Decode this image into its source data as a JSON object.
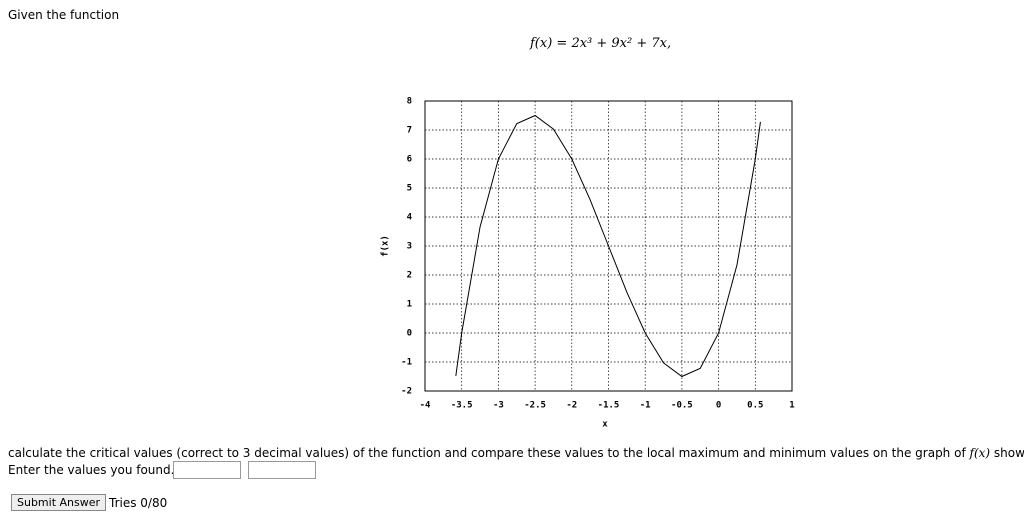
{
  "header": {
    "intro": "Given the function",
    "formula": "f(x) = 2x³ + 9x² + 7x,"
  },
  "chart_data": {
    "type": "line",
    "xlabel": "x",
    "ylabel": "f(x)",
    "x": [
      -3.58,
      -3.5,
      -3.25,
      -3,
      -2.75,
      -2.5,
      -2.25,
      -2,
      -1.75,
      -1.5,
      -1.25,
      -1,
      -0.75,
      -0.5,
      -0.25,
      0,
      0.25,
      0.5,
      0.57
    ],
    "series": [
      {
        "color": "#000000",
        "values": [
          -1.48,
          0,
          3.656,
          6,
          7.219,
          7.5,
          7.031,
          6,
          4.594,
          3,
          1.406,
          0,
          -1.031,
          -1.5,
          -1.219,
          0,
          2.344,
          6,
          7.28
        ]
      }
    ],
    "xlim": [
      -4,
      1
    ],
    "ylim": [
      -2,
      8
    ],
    "xticks": [
      -4,
      -3.5,
      -3,
      -2.5,
      -2,
      -1.5,
      -1,
      -0.5,
      0,
      0.5,
      1
    ],
    "yticks": [
      -2,
      -1,
      0,
      1,
      2,
      3,
      4,
      5,
      6,
      7,
      8
    ],
    "grid": true
  },
  "question": {
    "line1_a": "calculate the critical values (correct to 3 decimal values) of the function and compare these values to the local maximum and minimum values on the graph of",
    "line1_f": "f(x)",
    "line1_b": "shown.",
    "line2": "Enter the values you found."
  },
  "controls": {
    "submit": "Submit Answer",
    "tries": "Tries 0/80"
  }
}
